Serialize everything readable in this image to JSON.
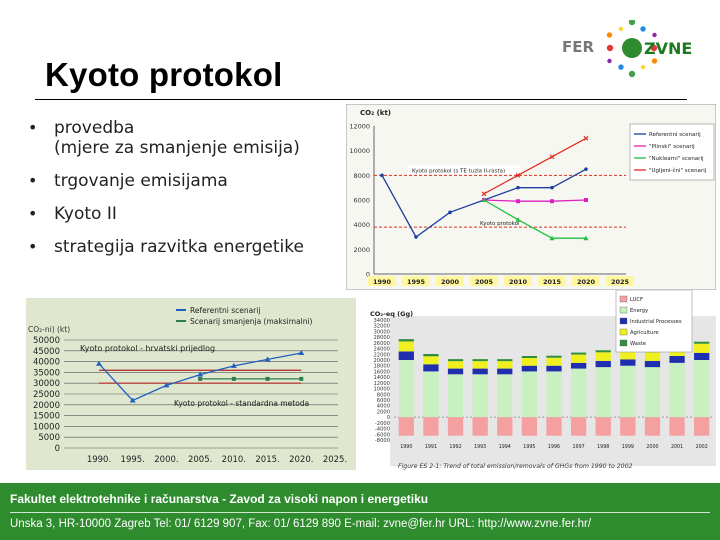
{
  "slide": {
    "title": "Kyoto protokol",
    "bullets": [
      {
        "text": "provedba",
        "sub": "(mjere za smanjenje emisija)"
      },
      {
        "text": "trgovanje emisijama"
      },
      {
        "text": "Kyoto II"
      },
      {
        "text": "strategija razvitka energetike"
      }
    ]
  },
  "logo": {
    "left_text": "FER",
    "right_text": "ZVNE",
    "dot_colors": [
      "#e53935",
      "#fb8c00",
      "#fdd835",
      "#43a047",
      "#1e88e5",
      "#8e24aa",
      "#e53935",
      "#fb8c00",
      "#fdd835",
      "#43a047",
      "#1e88e5",
      "#8e24aa"
    ]
  },
  "footer": {
    "line1": "Fakultet elektrotehnike i računarstva - Zavod za visoki napon i energetiku",
    "line2": "Unska 3, HR-10000 Zagreb  Tel: 01/ 6129 907, Fax: 01/ 6129 890  E-mail: zvne@fer.hr   URL: http://www.zvne.fer.hr/"
  },
  "chart_data": [
    {
      "id": "scenarios",
      "type": "line",
      "ylabel": "CO₂ (kt)",
      "x": [
        1990,
        1995,
        2000,
        2005,
        2010,
        2015,
        2020,
        2025
      ],
      "ylim": [
        0,
        12000
      ],
      "yticks": [
        0,
        2000,
        4000,
        6000,
        8000,
        10000,
        12000
      ],
      "series": [
        {
          "name": "Referentni scenarij",
          "color": "#1f3f9f",
          "x": [
            1990,
            1995,
            2000,
            2005,
            2010,
            2015,
            2020
          ],
          "values": [
            8000,
            3000,
            5000,
            6000,
            7000,
            7000,
            8500
          ]
        },
        {
          "name": "\"Plinski\" scenarij",
          "color": "#e020c0",
          "x": [
            2005,
            2010,
            2015,
            2020
          ],
          "values": [
            6000,
            5900,
            5900,
            6000
          ]
        },
        {
          "name": "\"Nuklearni\" scenarij",
          "color": "#20c040",
          "x": [
            2005,
            2010,
            2015,
            2020
          ],
          "values": [
            6000,
            4400,
            2900,
            2900
          ]
        },
        {
          "name": "\"Ugljeni-čni\" scenarij",
          "color": "#e03020",
          "x": [
            2005,
            2010,
            2015,
            2020
          ],
          "values": [
            6500,
            8000,
            9500,
            11000
          ]
        }
      ],
      "annotations": [
        {
          "text": "Kyoto protokol (s TE tuzla II-rasta)",
          "level": 8000,
          "color": "#e03020"
        },
        {
          "text": "Kyoto protokol",
          "level": 3800,
          "color": "#e03020"
        }
      ],
      "grid": false,
      "legend": "right"
    },
    {
      "id": "croatian",
      "type": "line",
      "ylabel": "CO₂-ni) (kt)",
      "x": [
        "1990.",
        "1995.",
        "2000.",
        "2005.",
        "2010.",
        "2015.",
        "2020.",
        "2025."
      ],
      "ylim": [
        0,
        50000
      ],
      "yticks": [
        0,
        5000,
        10000,
        15000,
        20000,
        25000,
        30000,
        35000,
        40000,
        45000,
        50000
      ],
      "series": [
        {
          "name": "Referentni scenarij",
          "color": "#2060c0",
          "x": [
            1990,
            1995,
            2000,
            2005,
            2010,
            2015,
            2020
          ],
          "values": [
            39000,
            22000,
            29000,
            34000,
            38000,
            41000,
            44000
          ]
        },
        {
          "name": "Scenarij smanjenja (maksimalni)",
          "color": "#2e7d4f",
          "x": [
            2005,
            2010,
            2015,
            2020
          ],
          "values": [
            32000,
            32000,
            32000,
            32000
          ]
        }
      ],
      "annotations": [
        {
          "text": "Kyoto protokol - hrvatski prijedlog",
          "level": 36000,
          "color": "#b22222"
        },
        {
          "text": "Kyoto protokol - standardna metoda",
          "level": 30000,
          "color": "#b22222"
        }
      ],
      "grid": true,
      "legend": "top"
    },
    {
      "id": "ghg",
      "type": "bar",
      "ylabel": "CO₂-eq (Gg)",
      "ylim": [
        -8000,
        34000
      ],
      "yticks": [
        34000,
        32000,
        30000,
        28000,
        26000,
        24000,
        22000,
        20000,
        18000,
        16000,
        14000,
        12000,
        10000,
        8000,
        6000,
        4000,
        2000,
        0,
        -2000,
        -4000,
        -6000,
        -8000
      ],
      "categories": [
        "1990",
        "1991",
        "1992",
        "1993",
        "1994",
        "1995",
        "1996",
        "1997",
        "1998",
        "1999",
        "2000",
        "2001",
        "2002"
      ],
      "series": [
        {
          "name": "LUCF",
          "color": "#f4a0a0",
          "values": [
            -6500,
            -6500,
            -6500,
            -6500,
            -6500,
            -6500,
            -6500,
            -6500,
            -6500,
            -6500,
            -6500,
            -6500,
            -6500
          ]
        },
        {
          "name": "Energy",
          "color": "#c8f0c0",
          "values": [
            20000,
            16000,
            15000,
            15000,
            15000,
            16000,
            16000,
            17000,
            17500,
            18000,
            17500,
            19000,
            20000
          ]
        },
        {
          "name": "Industrial Processes",
          "color": "#1f2fb0",
          "values": [
            3000,
            2500,
            2000,
            2000,
            2000,
            2000,
            2000,
            2000,
            2200,
            2200,
            2200,
            2400,
            2500
          ]
        },
        {
          "name": "Agriculture",
          "color": "#f0f020",
          "values": [
            3500,
            2800,
            2600,
            2600,
            2600,
            2700,
            2800,
            2900,
            3000,
            3000,
            3000,
            3100,
            3200
          ]
        },
        {
          "name": "Waste",
          "color": "#2f8f3f",
          "values": [
            800,
            800,
            700,
            700,
            700,
            700,
            700,
            700,
            700,
            700,
            700,
            700,
            700
          ]
        }
      ],
      "caption": "Figure ES 2-1: Trend of total emission/removals of GHGs from 1990 to 2002",
      "legend": "top-right"
    }
  ]
}
